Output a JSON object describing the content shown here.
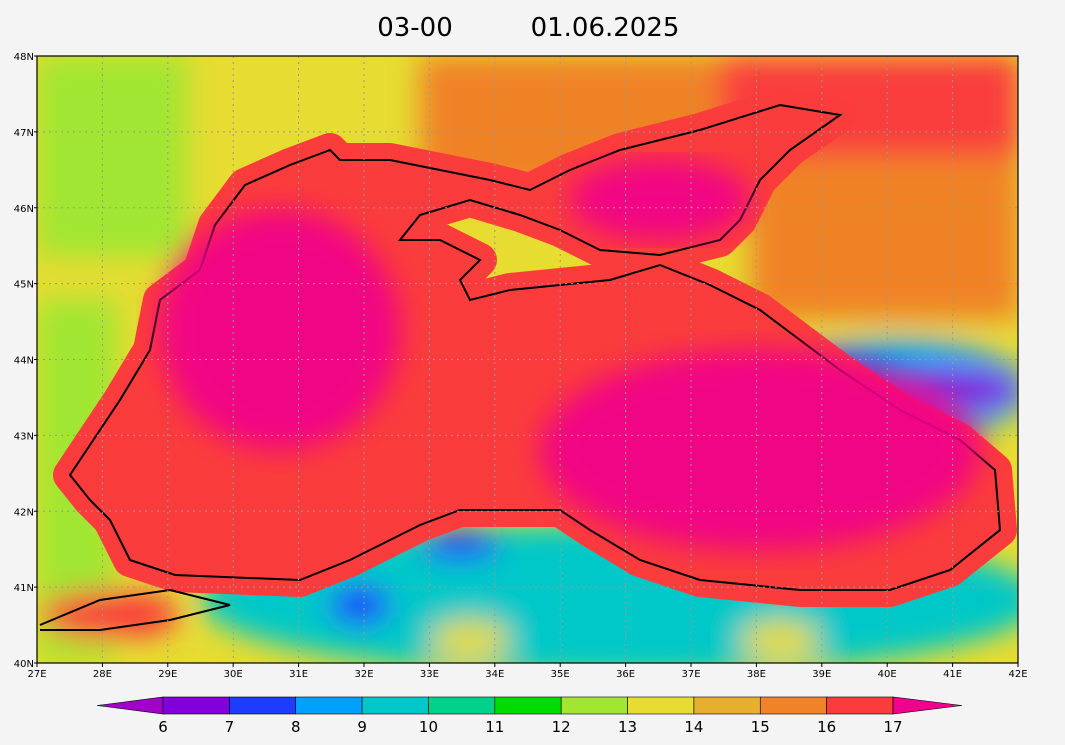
{
  "header": {
    "time": "03-00",
    "date": "01.06.2025"
  },
  "map": {
    "lat_labels": [
      "40N",
      "41N",
      "42N",
      "43N",
      "44N",
      "45N",
      "46N",
      "47N",
      "48N"
    ],
    "lon_labels": [
      "27E",
      "28E",
      "29E",
      "30E",
      "31E",
      "32E",
      "33E",
      "34E",
      "35E",
      "36E",
      "37E",
      "38E",
      "39E",
      "40E",
      "41E",
      "42E"
    ],
    "grid": true
  },
  "colorbar": {
    "labels": [
      6,
      7,
      8,
      9,
      10,
      11,
      12,
      13,
      14,
      15,
      16,
      17
    ],
    "colors": [
      "#a000c8",
      "#8200dc",
      "#1e3cff",
      "#00a0ff",
      "#00c8c8",
      "#00d28c",
      "#00dc00",
      "#a0e632",
      "#e6dc32",
      "#e6af2d",
      "#f08228",
      "#fa3c3c",
      "#f0008c"
    ]
  }
}
